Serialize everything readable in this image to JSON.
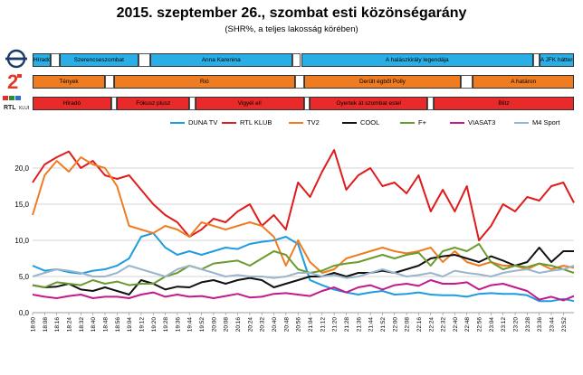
{
  "header": {
    "title": "2015. szeptember 26., szombat esti közönségarány",
    "subtitle": "(SHR%, a teljes lakosság körében)"
  },
  "colors": {
    "m1_blue": "#29aee6",
    "rtl_red": "#e82a2a",
    "tv2_orange": "#f07c22"
  },
  "schedules": [
    {
      "channel": "M1",
      "logo_icon": "m1-icon",
      "color": "#29aee6",
      "blocks": [
        {
          "label": "Híradó",
          "start": "18:00",
          "end": "18:12"
        },
        {
          "label": "",
          "start": "18:12",
          "end": "18:18",
          "gap": true
        },
        {
          "label": "Szerencseszombat",
          "start": "18:18",
          "end": "19:10"
        },
        {
          "label": "",
          "start": "19:10",
          "end": "19:18",
          "gap": true
        },
        {
          "label": "Anna Karenina",
          "start": "19:18",
          "end": "20:52"
        },
        {
          "label": "",
          "start": "20:52",
          "end": "20:58",
          "gap": true
        },
        {
          "label": "A halászkirály legendája",
          "start": "20:58",
          "end": "23:32"
        },
        {
          "label": "",
          "start": "23:32",
          "end": "23:36",
          "gap": true
        },
        {
          "label": "A JFK háttere",
          "start": "23:36",
          "end": "23:59"
        }
      ]
    },
    {
      "channel": "TV2",
      "logo_icon": "tv2-icon",
      "color": "#f07c22",
      "blocks": [
        {
          "label": "Tények",
          "start": "18:00",
          "end": "18:48"
        },
        {
          "label": "",
          "start": "18:48",
          "end": "18:54",
          "gap": true
        },
        {
          "label": "Rió",
          "start": "18:54",
          "end": "20:54"
        },
        {
          "label": "",
          "start": "20:54",
          "end": "21:00",
          "gap": true
        },
        {
          "label": "Derült égből Polly",
          "start": "21:00",
          "end": "22:44"
        },
        {
          "label": "",
          "start": "22:44",
          "end": "22:52",
          "gap": true
        },
        {
          "label": "A határon",
          "start": "22:52",
          "end": "23:59"
        }
      ]
    },
    {
      "channel": "RTL KLUB",
      "logo_icon": "rtl-klub-icon",
      "color": "#e82a2a",
      "blocks": [
        {
          "label": "Híradó",
          "start": "18:00",
          "end": "18:52"
        },
        {
          "label": "",
          "start": "18:52",
          "end": "18:56",
          "gap": true
        },
        {
          "label": "Fókusz plusz",
          "start": "18:56",
          "end": "19:44"
        },
        {
          "label": "",
          "start": "19:44",
          "end": "19:48",
          "gap": true
        },
        {
          "label": "Vigyél el!",
          "start": "19:48",
          "end": "21:00"
        },
        {
          "label": "",
          "start": "21:00",
          "end": "21:04",
          "gap": true
        },
        {
          "label": "Gyertek át szombat este!",
          "start": "21:04",
          "end": "22:22"
        },
        {
          "label": "",
          "start": "22:22",
          "end": "22:26",
          "gap": true
        },
        {
          "label": "Blitz",
          "start": "22:26",
          "end": "23:59"
        }
      ]
    }
  ],
  "chart_data": {
    "type": "line",
    "title": "",
    "xlabel": "",
    "ylabel": "",
    "ylim": [
      0,
      25
    ],
    "yticks": [
      "0,0",
      "5,0",
      "10,0",
      "15,0",
      "20,0"
    ],
    "ytick_values": [
      0,
      5,
      10,
      15,
      20
    ],
    "xticks": [
      "18:00",
      "18:08",
      "18:16",
      "18:24",
      "18:32",
      "18:40",
      "18:48",
      "18:56",
      "19:04",
      "19:12",
      "19:20",
      "19:28",
      "19:36",
      "19:44",
      "19:52",
      "20:00",
      "20:08",
      "20:16",
      "20:24",
      "20:32",
      "20:40",
      "20:48",
      "20:56",
      "21:04",
      "21:12",
      "21:20",
      "21:28",
      "21:36",
      "21:44",
      "21:52",
      "22:00",
      "22:08",
      "22:16",
      "22:24",
      "22:32",
      "22:40",
      "22:48",
      "22:56",
      "23:04",
      "23:12",
      "23:20",
      "23:28",
      "23:36",
      "23:44",
      "23:52"
    ],
    "x": [
      "18:00",
      "18:08",
      "18:16",
      "18:24",
      "18:32",
      "18:40",
      "18:48",
      "18:56",
      "19:04",
      "19:12",
      "19:20",
      "19:28",
      "19:36",
      "19:44",
      "19:52",
      "20:00",
      "20:08",
      "20:16",
      "20:24",
      "20:32",
      "20:40",
      "20:48",
      "20:56",
      "21:04",
      "21:12",
      "21:20",
      "21:28",
      "21:36",
      "21:44",
      "21:52",
      "22:00",
      "22:08",
      "22:16",
      "22:24",
      "22:32",
      "22:40",
      "22:48",
      "22:56",
      "23:04",
      "23:12",
      "23:20",
      "23:28",
      "23:36",
      "23:44",
      "23:52",
      "23:59"
    ],
    "legend_position": "top",
    "grid": "horizontal",
    "series": [
      {
        "name": "DUNA TV",
        "color": "#1f9be0",
        "values": [
          6.5,
          5.8,
          6.0,
          5.6,
          5.4,
          5.8,
          6.0,
          6.5,
          7.5,
          10.5,
          11.0,
          9.0,
          8.0,
          8.5,
          8.0,
          8.5,
          9.0,
          8.8,
          9.5,
          9.8,
          10.0,
          10.5,
          9.5,
          4.5,
          3.8,
          3.2,
          2.8,
          2.5,
          2.8,
          3.0,
          2.5,
          2.6,
          2.8,
          2.5,
          2.4,
          2.4,
          2.2,
          2.6,
          2.7,
          2.6,
          2.6,
          2.4,
          1.6,
          1.6,
          1.9,
          1.6
        ]
      },
      {
        "name": "RTL KLUB",
        "color": "#e01b1b",
        "values": [
          18.0,
          20.5,
          21.5,
          22.3,
          20.0,
          21.0,
          19.0,
          18.5,
          19.0,
          17.0,
          15.0,
          13.5,
          12.5,
          10.5,
          11.5,
          13.0,
          12.5,
          14.0,
          15.0,
          12.0,
          13.5,
          11.5,
          18.0,
          16.0,
          19.5,
          22.5,
          17.0,
          19.0,
          20.0,
          17.5,
          18.0,
          16.5,
          19.0,
          14.0,
          17.0,
          14.0,
          17.5,
          10.0,
          12.0,
          15.0,
          14.0,
          16.0,
          15.5,
          17.5,
          18.0,
          15.2
        ]
      },
      {
        "name": "TV2",
        "color": "#f07c22",
        "values": [
          13.5,
          19.0,
          21.0,
          19.5,
          21.5,
          20.5,
          20.0,
          17.5,
          12.0,
          11.5,
          11.0,
          12.0,
          11.5,
          10.5,
          12.5,
          12.0,
          11.5,
          12.0,
          12.5,
          12.0,
          10.5,
          6.5,
          10.0,
          7.0,
          5.5,
          6.0,
          7.5,
          8.0,
          8.5,
          9.0,
          8.5,
          8.2,
          8.5,
          9.0,
          7.0,
          8.5,
          7.0,
          6.5,
          7.0,
          6.5,
          6.5,
          6.0,
          6.8,
          6.0,
          6.5,
          6.2
        ]
      },
      {
        "name": "COOL",
        "color": "#111111",
        "values": [
          3.8,
          3.5,
          3.6,
          4.0,
          3.2,
          3.0,
          3.5,
          3.0,
          2.5,
          4.5,
          4.0,
          3.2,
          3.6,
          3.5,
          4.2,
          4.5,
          4.0,
          4.5,
          4.8,
          4.5,
          3.5,
          4.0,
          4.5,
          5.0,
          5.0,
          5.5,
          5.0,
          5.5,
          5.5,
          5.8,
          5.5,
          6.0,
          6.5,
          7.5,
          7.8,
          8.0,
          7.5,
          7.0,
          7.8,
          7.2,
          6.5,
          7.0,
          9.0,
          7.0,
          8.5,
          8.5
        ]
      },
      {
        "name": "F+",
        "color": "#6b9a2e",
        "values": [
          3.8,
          3.5,
          4.2,
          4.0,
          3.8,
          4.5,
          4.0,
          4.3,
          3.8,
          4.0,
          4.0,
          5.0,
          5.5,
          6.5,
          6.0,
          6.8,
          7.0,
          7.2,
          6.5,
          7.5,
          8.5,
          8.0,
          6.0,
          5.5,
          5.8,
          6.5,
          6.8,
          7.0,
          7.5,
          8.0,
          7.5,
          8.0,
          8.3,
          6.5,
          8.5,
          9.0,
          8.5,
          9.5,
          7.0,
          6.0,
          6.5,
          6.3,
          6.8,
          6.5,
          6.0,
          5.5
        ]
      },
      {
        "name": "VIASAT3",
        "color": "#c4198c",
        "values": [
          2.5,
          2.2,
          2.0,
          2.3,
          2.5,
          2.0,
          2.2,
          2.2,
          2.0,
          2.5,
          2.8,
          2.2,
          2.5,
          2.2,
          2.3,
          2.0,
          2.3,
          2.6,
          2.1,
          2.2,
          2.6,
          2.7,
          2.5,
          2.3,
          3.0,
          3.5,
          2.8,
          3.5,
          3.8,
          3.2,
          3.8,
          4.0,
          3.7,
          4.5,
          4.0,
          4.0,
          4.2,
          3.2,
          3.8,
          4.0,
          3.5,
          3.0,
          1.8,
          2.2,
          1.7,
          2.3
        ]
      },
      {
        "name": "M4 Sport",
        "color": "#9ab5cc",
        "values": [
          5.0,
          5.5,
          6.0,
          5.8,
          5.5,
          5.0,
          5.0,
          5.5,
          6.5,
          6.0,
          5.5,
          5.0,
          6.0,
          6.5,
          6.0,
          5.5,
          5.0,
          5.2,
          5.0,
          5.0,
          4.8,
          5.0,
          5.5,
          5.5,
          5.0,
          5.2,
          4.8,
          5.0,
          5.5,
          6.0,
          5.5,
          5.0,
          5.2,
          5.5,
          5.0,
          5.8,
          5.5,
          5.3,
          5.0,
          5.5,
          5.8,
          6.0,
          5.5,
          5.8,
          6.0,
          6.5
        ]
      }
    ]
  }
}
